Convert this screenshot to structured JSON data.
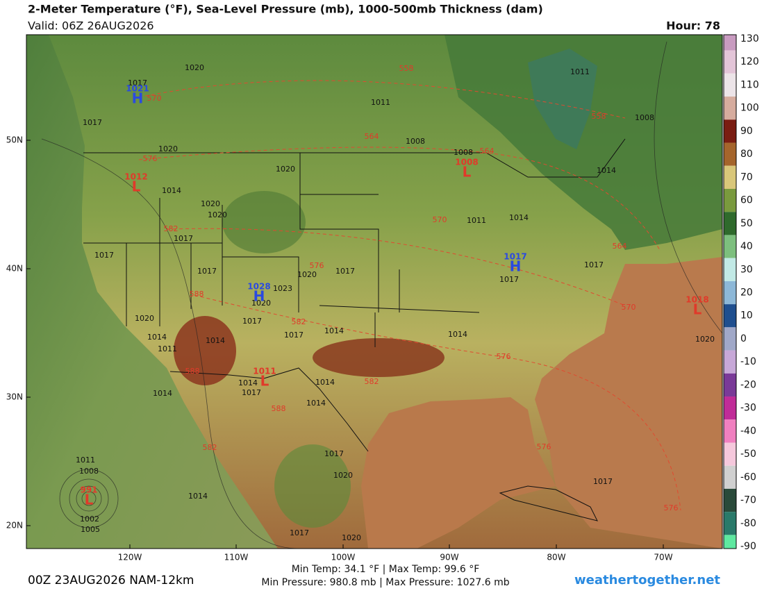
{
  "header": {
    "title": "2-Meter Temperature (°F), Sea-Level Pressure (mb), 1000-500mb Thickness (dam)",
    "valid": "Valid: 06Z 26AUG2026",
    "hour": "Hour: 78"
  },
  "colorbar": {
    "ticks": [
      130,
      120,
      110,
      100,
      90,
      80,
      70,
      60,
      50,
      40,
      30,
      20,
      10,
      0,
      -10,
      -20,
      -30,
      -40,
      -50,
      -60,
      -70,
      -80,
      -90
    ],
    "colors": [
      "#c89bc0",
      "#e3c5d8",
      "#ece4e8",
      "#d6ac9e",
      "#7a1d12",
      "#a5652c",
      "#d9c77a",
      "#7a9a3e",
      "#2f6a2c",
      "#7dbf7e",
      "#c2eae6",
      "#8db8d8",
      "#1f4f8f",
      "#a0a8c8",
      "#c7a8d8",
      "#7a3a98",
      "#c02c98",
      "#f080c0",
      "#f5c8dc",
      "#d0d0d0",
      "#2a4a3a",
      "#2a7a6a",
      "#5fe8a0"
    ]
  },
  "map": {
    "lat_labels": [
      "50N",
      "40N",
      "30N",
      "20N"
    ],
    "lon_labels": [
      "120W",
      "110W",
      "100W",
      "90W",
      "80W",
      "70W"
    ],
    "pressure_labels": [
      "1020",
      "1017",
      "1011",
      "1011",
      "1008",
      "1008",
      "1008",
      "1017",
      "1020",
      "1020",
      "1014",
      "1014",
      "1020",
      "1020",
      "1017",
      "1011",
      "1014",
      "1017",
      "1017",
      "1020",
      "1017",
      "1023",
      "1020",
      "1017",
      "1017",
      "1020",
      "1017",
      "1017",
      "1014",
      "1014",
      "1011",
      "1014",
      "1014",
      "1014",
      "1017",
      "1014",
      "1014",
      "1014",
      "1014",
      "1017",
      "1020",
      "1017",
      "1020",
      "1011",
      "1008",
      "1002",
      "1005",
      "1020",
      "1017"
    ],
    "thickness_labels": [
      "558",
      "558",
      "570",
      "564",
      "564",
      "576",
      "582",
      "570",
      "564",
      "576",
      "570",
      "588",
      "582",
      "588",
      "582",
      "588",
      "576",
      "582",
      "576",
      "576"
    ],
    "centers": [
      {
        "letter": "H",
        "value": "1021"
      },
      {
        "letter": "L",
        "value": "1012"
      },
      {
        "letter": "H",
        "value": "1028"
      },
      {
        "letter": "L",
        "value": "1008"
      },
      {
        "letter": "H",
        "value": "1017"
      },
      {
        "letter": "L",
        "value": "1018"
      },
      {
        "letter": "L",
        "value": "1011"
      },
      {
        "letter": "L",
        "value": "991"
      }
    ]
  },
  "footer": {
    "temps": "Min Temp:  34.1 °F | Max Temp:  99.6 °F",
    "pressures": "Min Pressure: 980.8 mb | Max Pressure: 1027.6 mb",
    "run": "00Z 23AUG2026 NAM-12km",
    "site": "weathertogether.net"
  }
}
